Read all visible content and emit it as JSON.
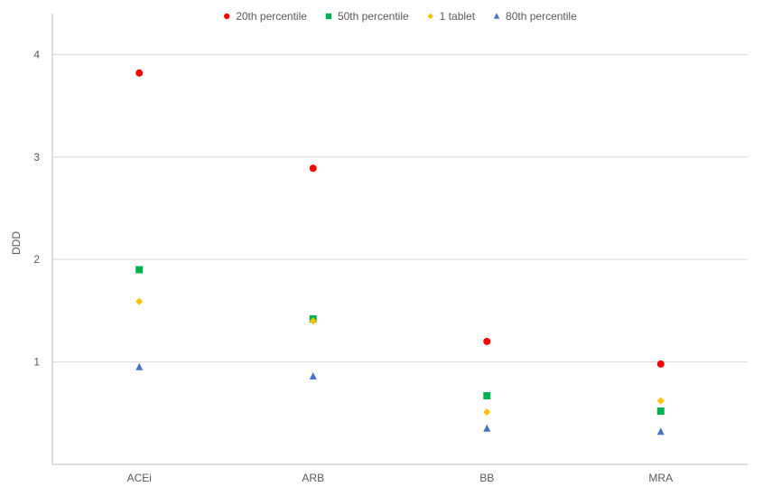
{
  "chart_data": {
    "type": "scatter",
    "categories": [
      "ACEi",
      "ARB",
      "BB",
      "MRA"
    ],
    "ylabel": "DDD",
    "xlabel": "",
    "ylim": [
      0,
      4.4
    ],
    "yticks": [
      1,
      2,
      3,
      4
    ],
    "grid": "horizontal",
    "legend_position": "top",
    "series": [
      {
        "name": "20th percentile",
        "marker": "circle",
        "color": "#FF0000",
        "values": [
          3.82,
          2.89,
          1.2,
          0.98
        ]
      },
      {
        "name": "50th percentile",
        "marker": "square",
        "color": "#00B050",
        "values": [
          1.9,
          1.42,
          0.67,
          0.52
        ]
      },
      {
        "name": "1 tablet",
        "marker": "diamond",
        "color": "#FFC000",
        "values": [
          1.59,
          1.4,
          0.51,
          0.62
        ]
      },
      {
        "name": "80th percentile",
        "marker": "triangle",
        "color": "#4472C4",
        "values": [
          0.95,
          0.86,
          0.35,
          0.32
        ]
      }
    ]
  }
}
